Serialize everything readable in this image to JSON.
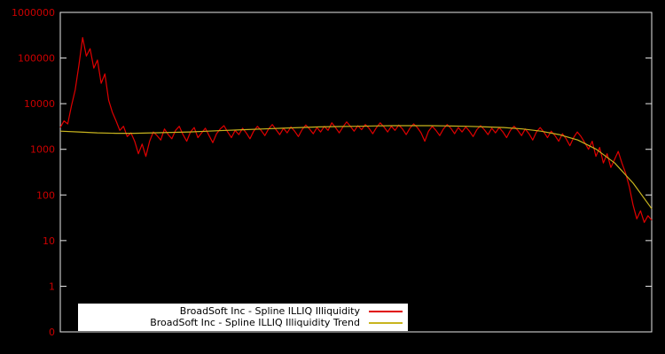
{
  "colors": {
    "background": "#000000",
    "plot_border": "#e8e8e8",
    "tick_label": "#cc0000",
    "series_red": "#e00000",
    "series_yellow": "#c8b41e",
    "legend_bg": "#ffffff",
    "legend_text": "#000000"
  },
  "chart_data": {
    "type": "line",
    "title": "",
    "xlabel": "",
    "ylabel": "",
    "y_scale": "log",
    "ylim": [
      0.1,
      1000000
    ],
    "x_range": [
      0,
      1
    ],
    "grid": false,
    "legend_position": "bottom-center-inside",
    "y_ticks": [
      {
        "label": "1000000",
        "log": 6
      },
      {
        "label": "100000",
        "log": 5
      },
      {
        "label": "10000",
        "log": 4
      },
      {
        "label": "1000",
        "log": 3
      },
      {
        "label": "100",
        "log": 2
      },
      {
        "label": "10",
        "log": 1
      },
      {
        "label": "1",
        "log": 0
      },
      {
        "label": "0",
        "log": -1
      }
    ],
    "series": [
      {
        "name": "BroadSoft Inc - Spline ILLIQ Illiquidity",
        "color": "#e00000",
        "values": [
          3000,
          4200,
          3600,
          9000,
          20000,
          70000,
          280000,
          110000,
          160000,
          60000,
          90000,
          28000,
          45000,
          12000,
          6500,
          4200,
          2600,
          3200,
          1900,
          2300,
          1500,
          800,
          1300,
          700,
          1500,
          2400,
          2000,
          1600,
          2800,
          2100,
          1700,
          2600,
          3200,
          2100,
          1500,
          2400,
          3000,
          1800,
          2300,
          2900,
          2000,
          1400,
          2200,
          2800,
          3300,
          2400,
          1800,
          2600,
          2100,
          2900,
          2300,
          1700,
          2500,
          3200,
          2600,
          2000,
          2800,
          3500,
          2700,
          2100,
          2900,
          2300,
          3100,
          2500,
          1900,
          2700,
          3400,
          2800,
          2200,
          3000,
          2400,
          3200,
          2600,
          3800,
          3000,
          2300,
          3100,
          4000,
          3200,
          2500,
          3300,
          2700,
          3500,
          2900,
          2200,
          3000,
          3800,
          3100,
          2400,
          3200,
          2600,
          3400,
          2800,
          2100,
          2900,
          3600,
          3000,
          2300,
          1500,
          2500,
          3200,
          2600,
          2000,
          2800,
          3500,
          2900,
          2200,
          3000,
          2400,
          3100,
          2500,
          1900,
          2700,
          3300,
          2700,
          2100,
          2900,
          2300,
          3000,
          2400,
          1800,
          2600,
          3200,
          2600,
          2000,
          2800,
          2200,
          1600,
          2400,
          3000,
          2400,
          1800,
          2500,
          2000,
          1500,
          2200,
          1700,
          1200,
          1800,
          2400,
          1900,
          1400,
          1000,
          1500,
          700,
          1100,
          500,
          800,
          400,
          600,
          900,
          500,
          300,
          150,
          60,
          30,
          45,
          25,
          35,
          28
        ]
      },
      {
        "name": "BroadSoft Inc - Spline ILLIQ Illiquidity Trend",
        "color": "#c8b41e",
        "values": [
          2500,
          2400,
          2300,
          2250,
          2250,
          2300,
          2350,
          2400,
          2500,
          2600,
          2700,
          2800,
          2900,
          3000,
          3100,
          3150,
          3200,
          3250,
          3300,
          3300,
          3300,
          3250,
          3200,
          3100,
          3000,
          2800,
          2500,
          2100,
          1600,
          1000,
          500,
          180,
          50
        ]
      }
    ]
  }
}
